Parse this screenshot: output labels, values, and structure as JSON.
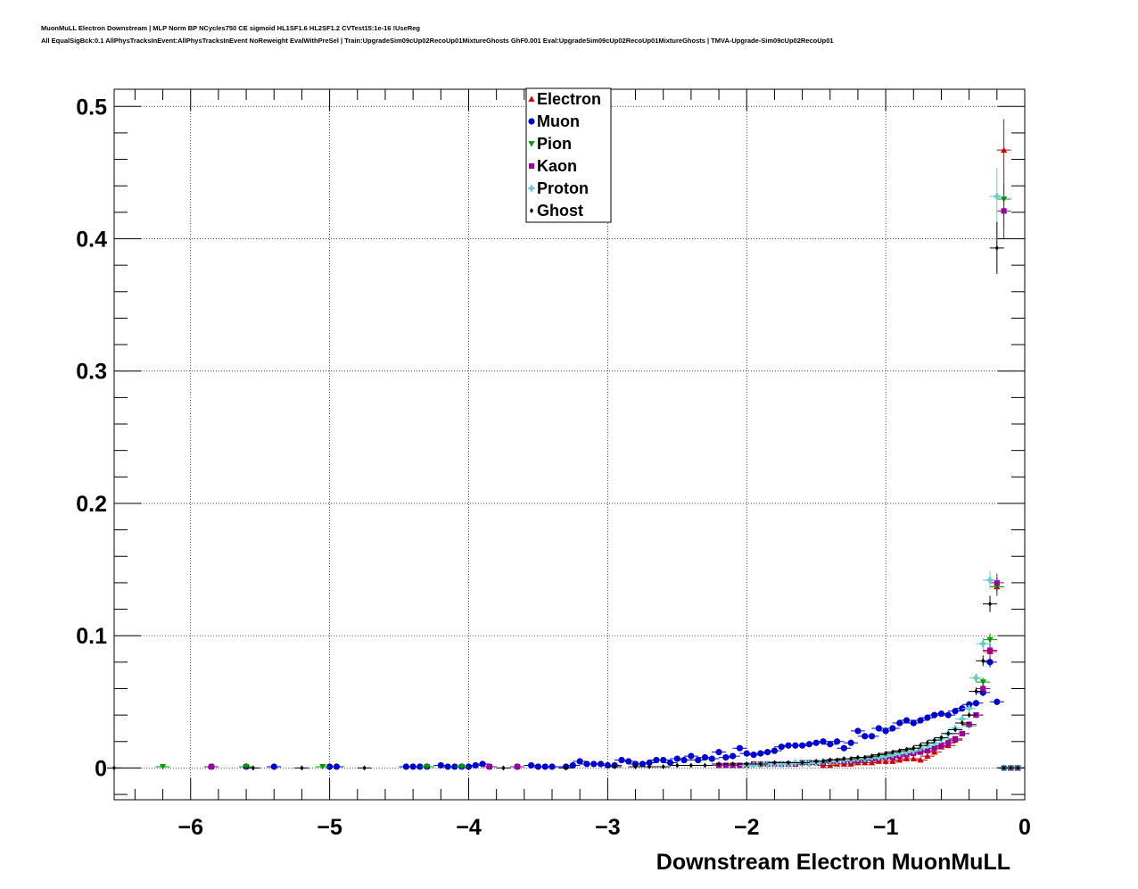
{
  "header": {
    "title_line1": "MuonMuLL Electron Downstream | MLP Norm BP NCycles750 CE sigmoid HL1SF1.6 HL2SF1.2 CVTest15:1e-16 !UseReg",
    "title_line2": "All EqualSigBck:0.1 AllPhysTracksInEvent:AllPhysTracksInEvent NoReweight EvalWithPreSel | Train:UpgradeSim09cUp02RecoUp01MixtureGhosts GhF0.001 Eval:UpgradeSim09cUp02RecoUp01MixtureGhosts | TMVA-Upgrade-Sim09cUp02RecoUp01"
  },
  "chart_data": {
    "type": "scatter",
    "title": "",
    "xlabel": "Downstream Electron MuonMuLL",
    "ylabel": "",
    "xlim": [
      -6.55,
      0.0
    ],
    "ylim": [
      -0.024,
      0.513
    ],
    "grid": true,
    "legend_position": "top-center",
    "x_ticks": [
      -6,
      -5,
      -4,
      -3,
      -2,
      -1,
      0
    ],
    "x_tick_labels": [
      "−6",
      "−5",
      "−4",
      "−3",
      "−2",
      "−1",
      "0"
    ],
    "y_ticks": [
      0,
      0.1,
      0.2,
      0.3,
      0.4,
      0.5
    ],
    "y_tick_labels": [
      "0",
      "0.1",
      "0.2",
      "0.3",
      "0.4",
      "0.5"
    ],
    "series": [
      {
        "name": "Electron",
        "color": "#cc0000",
        "marker": "triangle-up",
        "x": [
          -1.45,
          -1.4,
          -1.35,
          -1.3,
          -1.25,
          -1.2,
          -1.15,
          -1.1,
          -1.05,
          -1.0,
          -0.95,
          -0.9,
          -0.85,
          -0.8,
          -0.75,
          -0.7,
          -0.65,
          -0.6,
          -0.55,
          -0.5,
          -0.45,
          -0.4,
          -0.35,
          -0.3,
          -0.25,
          -0.2,
          -0.15,
          -0.1,
          -0.05
        ],
        "y": [
          0.002,
          0.002,
          0.003,
          0.003,
          0.003,
          0.004,
          0.004,
          0.004,
          0.005,
          0.005,
          0.005,
          0.006,
          0.007,
          0.007,
          0.006,
          0.009,
          0.012,
          0.016,
          0.017,
          0.021,
          0.026,
          0.033,
          0.04,
          0.06,
          0.088,
          0.137,
          0.467,
          0.0,
          0.0
        ]
      },
      {
        "name": "Muon",
        "color": "#0000cc",
        "marker": "circle",
        "x": [
          -5.85,
          -5.6,
          -5.4,
          -5.0,
          -4.95,
          -4.45,
          -4.4,
          -4.35,
          -4.3,
          -4.2,
          -4.15,
          -4.1,
          -4.05,
          -4.0,
          -3.95,
          -3.9,
          -3.85,
          -3.65,
          -3.55,
          -3.5,
          -3.45,
          -3.4,
          -3.3,
          -3.25,
          -3.2,
          -3.15,
          -3.1,
          -3.05,
          -3.0,
          -2.95,
          -2.9,
          -2.85,
          -2.8,
          -2.75,
          -2.7,
          -2.65,
          -2.6,
          -2.55,
          -2.5,
          -2.45,
          -2.4,
          -2.35,
          -2.3,
          -2.25,
          -2.2,
          -2.15,
          -2.1,
          -2.05,
          -2.0,
          -1.95,
          -1.9,
          -1.85,
          -1.8,
          -1.75,
          -1.7,
          -1.65,
          -1.6,
          -1.55,
          -1.5,
          -1.45,
          -1.4,
          -1.35,
          -1.3,
          -1.25,
          -1.2,
          -1.15,
          -1.1,
          -1.05,
          -1.0,
          -0.95,
          -0.9,
          -0.85,
          -0.8,
          -0.75,
          -0.7,
          -0.65,
          -0.6,
          -0.55,
          -0.5,
          -0.45,
          -0.4,
          -0.35,
          -0.3,
          -0.25,
          -0.2,
          -0.15,
          -0.1,
          -0.05
        ],
        "y": [
          0.001,
          0.001,
          0.001,
          0.001,
          0.001,
          0.001,
          0.001,
          0.001,
          0.001,
          0.002,
          0.001,
          0.001,
          0.001,
          0.001,
          0.002,
          0.003,
          0.001,
          0.001,
          0.002,
          0.001,
          0.001,
          0.001,
          0.001,
          0.002,
          0.005,
          0.003,
          0.003,
          0.003,
          0.002,
          0.002,
          0.006,
          0.005,
          0.003,
          0.003,
          0.004,
          0.006,
          0.006,
          0.004,
          0.007,
          0.006,
          0.009,
          0.006,
          0.008,
          0.007,
          0.012,
          0.008,
          0.009,
          0.015,
          0.011,
          0.01,
          0.011,
          0.012,
          0.013,
          0.016,
          0.017,
          0.017,
          0.017,
          0.018,
          0.019,
          0.02,
          0.018,
          0.02,
          0.015,
          0.019,
          0.028,
          0.024,
          0.024,
          0.03,
          0.028,
          0.03,
          0.034,
          0.036,
          0.034,
          0.036,
          0.038,
          0.04,
          0.041,
          0.04,
          0.043,
          0.045,
          0.048,
          0.049,
          0.057,
          0.08,
          0.05,
          0.0,
          0.0,
          0.0
        ]
      },
      {
        "name": "Pion",
        "color": "#009900",
        "marker": "triangle-down",
        "x": [
          -6.2,
          -5.6,
          -5.05,
          -4.3,
          -4.05,
          -2.05,
          -2.0,
          -1.95,
          -1.9,
          -1.85,
          -1.8,
          -1.75,
          -1.7,
          -1.65,
          -1.6,
          -1.55,
          -1.5,
          -1.45,
          -1.4,
          -1.35,
          -1.3,
          -1.25,
          -1.2,
          -1.15,
          -1.1,
          -1.05,
          -1.0,
          -0.95,
          -0.9,
          -0.85,
          -0.8,
          -0.75,
          -0.7,
          -0.65,
          -0.6,
          -0.55,
          -0.5,
          -0.45,
          -0.4,
          -0.35,
          -0.3,
          -0.25,
          -0.2,
          -0.15,
          -0.1,
          -0.05
        ],
        "y": [
          0.001,
          0.001,
          0.001,
          0.001,
          0.001,
          0.002,
          0.002,
          0.002,
          0.002,
          0.003,
          0.003,
          0.003,
          0.003,
          0.003,
          0.003,
          0.003,
          0.004,
          0.004,
          0.004,
          0.005,
          0.005,
          0.005,
          0.005,
          0.006,
          0.006,
          0.007,
          0.007,
          0.008,
          0.009,
          0.01,
          0.011,
          0.012,
          0.013,
          0.015,
          0.017,
          0.019,
          0.022,
          0.026,
          0.032,
          0.04,
          0.065,
          0.097,
          0.137,
          0.43,
          0.0,
          0.0
        ]
      },
      {
        "name": "Kaon",
        "color": "#990099",
        "marker": "square",
        "x": [
          -5.85,
          -3.85,
          -3.65,
          -2.2,
          -2.15,
          -2.1,
          -2.05,
          -2.0,
          -1.95,
          -1.9,
          -1.85,
          -1.8,
          -1.75,
          -1.7,
          -1.65,
          -1.6,
          -1.55,
          -1.5,
          -1.45,
          -1.4,
          -1.35,
          -1.3,
          -1.25,
          -1.2,
          -1.15,
          -1.1,
          -1.05,
          -1.0,
          -0.95,
          -0.9,
          -0.85,
          -0.8,
          -0.75,
          -0.7,
          -0.65,
          -0.6,
          -0.55,
          -0.5,
          -0.45,
          -0.4,
          -0.35,
          -0.3,
          -0.25,
          -0.2,
          -0.15,
          -0.1,
          -0.05
        ],
        "y": [
          0.001,
          0.001,
          0.001,
          0.002,
          0.002,
          0.002,
          0.002,
          0.002,
          0.003,
          0.003,
          0.003,
          0.003,
          0.003,
          0.003,
          0.003,
          0.004,
          0.004,
          0.004,
          0.004,
          0.005,
          0.005,
          0.005,
          0.005,
          0.006,
          0.006,
          0.007,
          0.007,
          0.008,
          0.008,
          0.009,
          0.01,
          0.011,
          0.012,
          0.013,
          0.015,
          0.017,
          0.019,
          0.022,
          0.026,
          0.033,
          0.04,
          0.06,
          0.089,
          0.14,
          0.421,
          0.0,
          0.0
        ]
      },
      {
        "name": "Proton",
        "color": "#66cccc",
        "marker": "cross",
        "x": [
          -2.0,
          -1.95,
          -1.9,
          -1.85,
          -1.8,
          -1.75,
          -1.7,
          -1.65,
          -1.6,
          -1.55,
          -1.5,
          -1.45,
          -1.4,
          -1.35,
          -1.3,
          -1.25,
          -1.2,
          -1.15,
          -1.1,
          -1.05,
          -1.0,
          -0.95,
          -0.9,
          -0.85,
          -0.8,
          -0.75,
          -0.7,
          -0.65,
          -0.6,
          -0.55,
          -0.5,
          -0.45,
          -0.4,
          -0.35,
          -0.3,
          -0.25,
          -0.2,
          -0.15,
          -0.1,
          -0.05
        ],
        "y": [
          0.002,
          0.002,
          0.003,
          0.003,
          0.003,
          0.003,
          0.003,
          0.004,
          0.004,
          0.004,
          0.004,
          0.005,
          0.005,
          0.005,
          0.006,
          0.006,
          0.007,
          0.007,
          0.008,
          0.008,
          0.009,
          0.01,
          0.011,
          0.012,
          0.013,
          0.015,
          0.017,
          0.019,
          0.022,
          0.026,
          0.03,
          0.037,
          0.045,
          0.068,
          0.094,
          0.142,
          0.432,
          0.0,
          0.0,
          0.0
        ]
      },
      {
        "name": "Ghost",
        "color": "#000000",
        "marker": "diamond",
        "x": [
          -6.55,
          -5.55,
          -5.2,
          -4.75,
          -3.75,
          -3.3,
          -2.95,
          -2.8,
          -2.7,
          -2.6,
          -2.5,
          -2.4,
          -2.3,
          -2.2,
          -2.1,
          -2.0,
          -1.9,
          -1.8,
          -1.7,
          -1.6,
          -1.5,
          -1.45,
          -1.4,
          -1.35,
          -1.3,
          -1.25,
          -1.2,
          -1.15,
          -1.1,
          -1.05,
          -1.0,
          -0.95,
          -0.9,
          -0.85,
          -0.8,
          -0.75,
          -0.7,
          -0.65,
          -0.6,
          -0.55,
          -0.5,
          -0.45,
          -0.4,
          -0.35,
          -0.3,
          -0.25,
          -0.2,
          -0.15,
          -0.1,
          -0.05
        ],
        "y": [
          0.0,
          0.0,
          0.0,
          0.0,
          0.0,
          0.0,
          0.001,
          0.001,
          0.001,
          0.001,
          0.002,
          0.002,
          0.002,
          0.003,
          0.003,
          0.003,
          0.003,
          0.004,
          0.004,
          0.004,
          0.005,
          0.005,
          0.006,
          0.006,
          0.007,
          0.007,
          0.008,
          0.008,
          0.009,
          0.01,
          0.011,
          0.012,
          0.013,
          0.014,
          0.015,
          0.017,
          0.019,
          0.021,
          0.023,
          0.026,
          0.029,
          0.034,
          0.04,
          0.058,
          0.081,
          0.124,
          0.393,
          0.0,
          0.0,
          0.0
        ]
      }
    ]
  }
}
